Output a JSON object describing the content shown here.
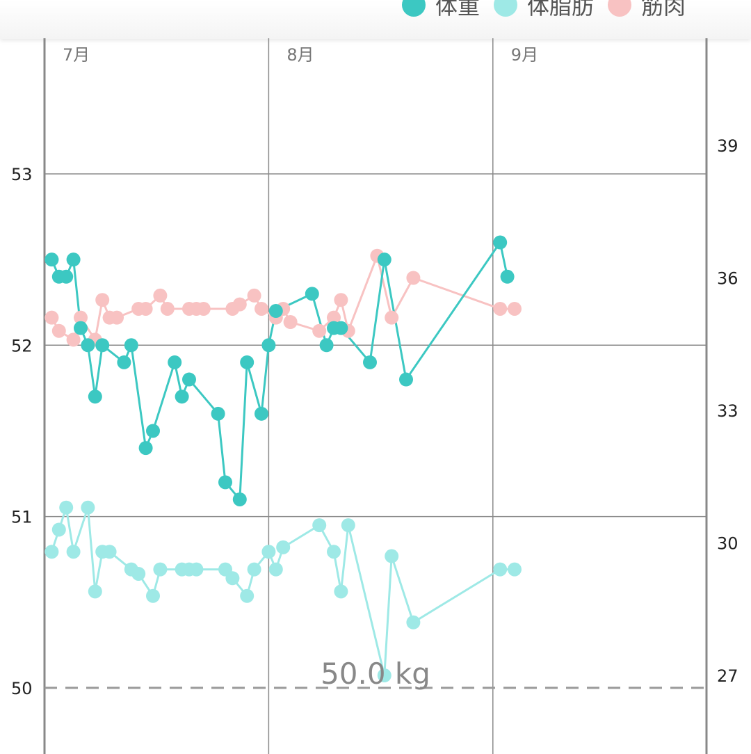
{
  "colors": {
    "weight": "#3cc8c2",
    "bodyfat": "#9ee9e6",
    "muscle": "#f8c2c2",
    "grid": "#8a8a8a",
    "axis": "#888888",
    "limit": "#999999"
  },
  "legend": [
    {
      "name": "体重",
      "color": "#3cc8c2"
    },
    {
      "name": "体脂肪",
      "color": "#9ee9e6"
    },
    {
      "name": "筋肉",
      "color": "#f8c2c2"
    }
  ],
  "chart_data": {
    "type": "line",
    "x_unit": "day (Jul 1 = day 0)",
    "months": [
      "7月",
      "8月",
      "9月"
    ],
    "left_axis": {
      "ticks": [
        "53",
        "52",
        "51",
        "50"
      ],
      "tick_values": [
        53,
        52,
        51,
        50
      ],
      "range": [
        49.6,
        53.8
      ]
    },
    "right_axis": {
      "ticks": [
        "39",
        "36",
        "33",
        "30",
        "27"
      ],
      "tick_values": [
        39,
        36,
        33,
        30,
        27
      ],
      "range": [
        25.8,
        41
      ]
    },
    "limit_line": {
      "value": 50.0,
      "label": "50.0 kg"
    },
    "series": [
      {
        "name": "体重",
        "axis": "left",
        "points": [
          [
            1,
            52.5
          ],
          [
            2,
            52.4
          ],
          [
            3,
            52.4
          ],
          [
            4,
            52.5
          ],
          [
            5,
            52.1
          ],
          [
            6,
            52.0
          ],
          [
            7,
            51.7
          ],
          [
            8,
            52.0
          ],
          [
            11,
            51.9
          ],
          [
            12,
            52.0
          ],
          [
            14,
            51.4
          ],
          [
            15,
            51.5
          ],
          [
            18,
            51.9
          ],
          [
            19,
            51.7
          ],
          [
            20,
            51.8
          ],
          [
            24,
            51.6
          ],
          [
            25,
            51.2
          ],
          [
            27,
            51.1
          ],
          [
            28,
            51.9
          ],
          [
            30,
            51.6
          ],
          [
            31,
            52.0
          ],
          [
            32,
            52.2
          ],
          [
            37,
            52.3
          ],
          [
            39,
            52.0
          ],
          [
            40,
            52.1
          ],
          [
            41,
            52.1
          ],
          [
            45,
            51.9
          ],
          [
            47,
            52.5
          ],
          [
            50,
            51.8
          ],
          [
            63,
            52.6
          ],
          [
            64,
            52.4
          ]
        ]
      },
      {
        "name": "体脂肪",
        "axis": "right",
        "points": [
          [
            1,
            29.8
          ],
          [
            2,
            30.3
          ],
          [
            3,
            30.8
          ],
          [
            4,
            29.8
          ],
          [
            6,
            30.8
          ],
          [
            7,
            28.9
          ],
          [
            8,
            29.8
          ],
          [
            9,
            29.8
          ],
          [
            12,
            29.4
          ],
          [
            13,
            29.3
          ],
          [
            15,
            28.8
          ],
          [
            16,
            29.4
          ],
          [
            19,
            29.4
          ],
          [
            20,
            29.4
          ],
          [
            21,
            29.4
          ],
          [
            25,
            29.4
          ],
          [
            26,
            29.2
          ],
          [
            28,
            28.8
          ],
          [
            29,
            29.4
          ],
          [
            31,
            29.8
          ],
          [
            32,
            29.4
          ],
          [
            33,
            29.9
          ],
          [
            38,
            30.4
          ],
          [
            40,
            29.8
          ],
          [
            41,
            28.9
          ],
          [
            42,
            30.4
          ],
          [
            47,
            27.0
          ],
          [
            48,
            29.7
          ],
          [
            51,
            28.2
          ],
          [
            63,
            29.4
          ],
          [
            65,
            29.4
          ]
        ]
      },
      {
        "name": "筋肉",
        "axis": "right",
        "points": [
          [
            1,
            35.1
          ],
          [
            2,
            34.8
          ],
          [
            4,
            34.6
          ],
          [
            5,
            35.1
          ],
          [
            7,
            34.6
          ],
          [
            8,
            35.5
          ],
          [
            9,
            35.1
          ],
          [
            10,
            35.1
          ],
          [
            13,
            35.3
          ],
          [
            14,
            35.3
          ],
          [
            16,
            35.6
          ],
          [
            17,
            35.3
          ],
          [
            20,
            35.3
          ],
          [
            21,
            35.3
          ],
          [
            22,
            35.3
          ],
          [
            26,
            35.3
          ],
          [
            27,
            35.4
          ],
          [
            29,
            35.6
          ],
          [
            30,
            35.3
          ],
          [
            32,
            35.1
          ],
          [
            33,
            35.3
          ],
          [
            34,
            35.0
          ],
          [
            38,
            34.8
          ],
          [
            40,
            35.1
          ],
          [
            41,
            35.5
          ],
          [
            42,
            34.8
          ],
          [
            46,
            36.5
          ],
          [
            48,
            35.1
          ],
          [
            51,
            36.0
          ],
          [
            63,
            35.3
          ],
          [
            65,
            35.3
          ]
        ]
      }
    ]
  }
}
